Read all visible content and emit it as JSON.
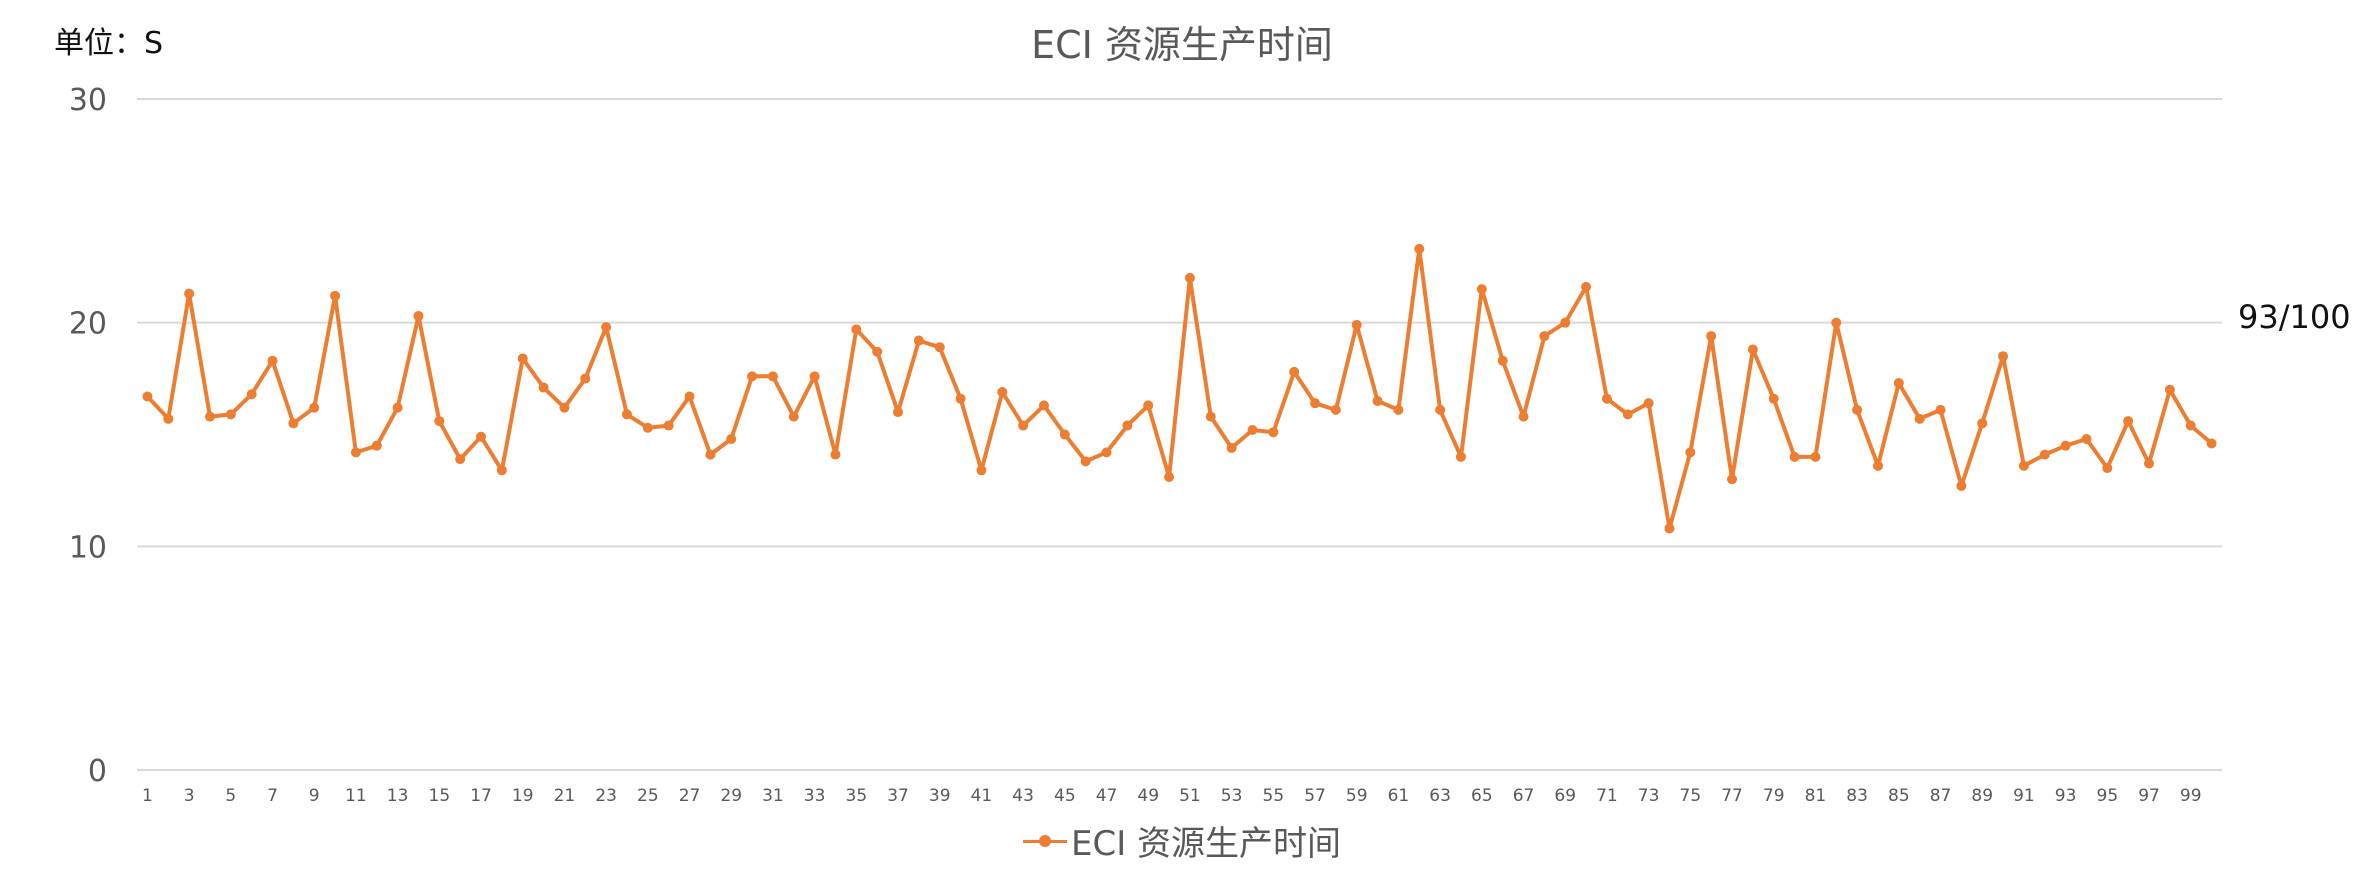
{
  "unit_label": "单位：S",
  "side_note": "93/100",
  "chart_data": {
    "type": "line",
    "title": "ECI 资源生产时间",
    "xlabel": "",
    "ylabel": "",
    "ylim": [
      0,
      30
    ],
    "yticks": [
      "0",
      "10",
      "20",
      "30"
    ],
    "xtick_labels": [
      "1",
      "3",
      "5",
      "7",
      "9",
      "11",
      "13",
      "15",
      "17",
      "19",
      "21",
      "23",
      "25",
      "27",
      "29",
      "31",
      "33",
      "35",
      "37",
      "39",
      "41",
      "43",
      "45",
      "47",
      "49",
      "51",
      "53",
      "55",
      "57",
      "59",
      "61",
      "63",
      "65",
      "67",
      "69",
      "71",
      "73",
      "75",
      "77",
      "79",
      "81",
      "83",
      "85",
      "87",
      "89",
      "91",
      "93",
      "95",
      "97",
      "99"
    ],
    "grid": true,
    "legend_position": "bottom",
    "color": "#ED7D31",
    "x": [
      1,
      2,
      3,
      4,
      5,
      6,
      7,
      8,
      9,
      10,
      11,
      12,
      13,
      14,
      15,
      16,
      17,
      18,
      19,
      20,
      21,
      22,
      23,
      24,
      25,
      26,
      27,
      28,
      29,
      30,
      31,
      32,
      33,
      34,
      35,
      36,
      37,
      38,
      39,
      40,
      41,
      42,
      43,
      44,
      45,
      46,
      47,
      48,
      49,
      50,
      51,
      52,
      53,
      54,
      55,
      56,
      57,
      58,
      59,
      60,
      61,
      62,
      63,
      64,
      65,
      66,
      67,
      68,
      69,
      70,
      71,
      72,
      73,
      74,
      75,
      76,
      77,
      78,
      79,
      80,
      81,
      82,
      83,
      84,
      85,
      86,
      87,
      88,
      89,
      90,
      91,
      92,
      93,
      94,
      95,
      96,
      97,
      98,
      99,
      100
    ],
    "series": [
      {
        "name": "ECI 资源生产时间",
        "values": [
          16.7,
          15.7,
          21.3,
          15.8,
          15.9,
          16.8,
          18.3,
          15.5,
          16.2,
          21.2,
          14.2,
          14.5,
          16.2,
          20.3,
          15.6,
          13.9,
          14.9,
          13.4,
          18.4,
          17.1,
          16.2,
          17.5,
          19.8,
          15.9,
          15.3,
          15.4,
          16.7,
          14.1,
          14.8,
          17.6,
          17.6,
          15.8,
          17.6,
          14.1,
          19.7,
          18.7,
          16.0,
          19.2,
          18.9,
          16.6,
          13.4,
          16.9,
          15.4,
          16.3,
          15.0,
          13.8,
          14.2,
          15.4,
          16.3,
          13.1,
          22.0,
          15.8,
          14.4,
          15.2,
          15.1,
          17.8,
          16.4,
          16.1,
          19.9,
          16.5,
          16.1,
          23.3,
          16.1,
          14.0,
          21.5,
          18.3,
          15.8,
          19.4,
          20.0,
          21.6,
          16.6,
          15.9,
          16.4,
          10.8,
          14.2,
          19.4,
          13.0,
          18.8,
          16.6,
          14.0,
          14.0,
          20.0,
          16.1,
          13.6,
          17.3,
          15.7,
          16.1,
          12.7,
          15.5,
          18.5,
          13.6,
          14.1,
          14.5,
          14.8,
          13.5,
          15.6,
          13.7,
          17.0,
          15.4,
          14.6
        ]
      }
    ]
  }
}
